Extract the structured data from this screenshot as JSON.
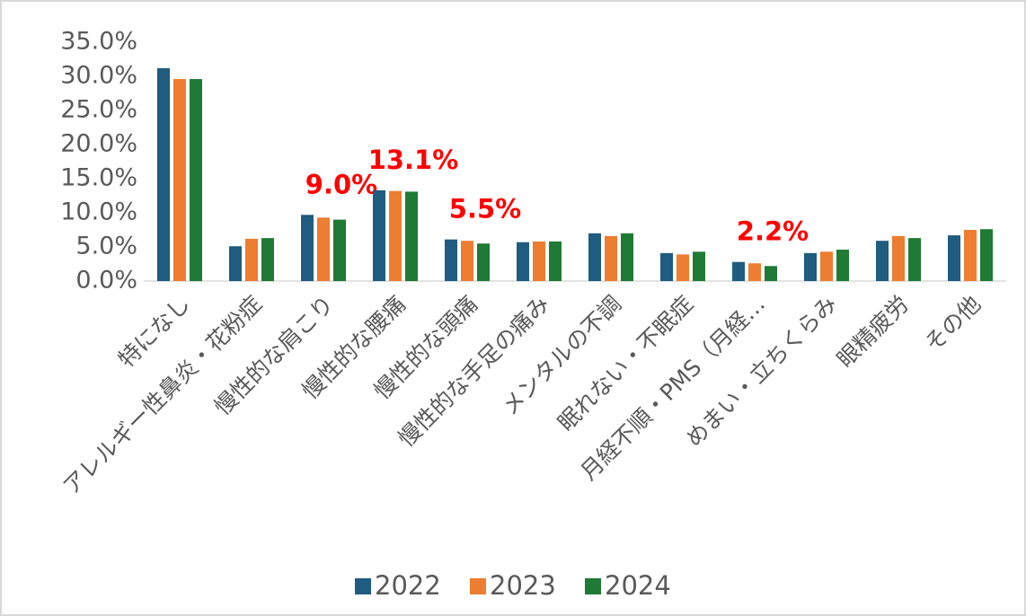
{
  "chart_data": {
    "type": "bar",
    "categories": [
      "特になし",
      "アレルギー性鼻炎・花粉症",
      "慢性的な肩こり",
      "慢性的な腰痛",
      "慢性的な頭痛",
      "慢性的な手足の痛み",
      "メンタルの不調",
      "眠れない・不眠症",
      "月経不順・PMS（月経…",
      "めまい・立ちくらみ",
      "眼精疲労",
      "その他"
    ],
    "series": [
      {
        "name": "2022",
        "color": "#1f5c7f",
        "values": [
          31.2,
          5.1,
          9.7,
          13.3,
          6.1,
          5.7,
          7.0,
          4.1,
          2.8,
          4.1,
          5.9,
          6.7
        ]
      },
      {
        "name": "2023",
        "color": "#ed7d31",
        "values": [
          29.6,
          6.2,
          9.3,
          13.2,
          5.9,
          5.8,
          6.6,
          3.9,
          2.6,
          4.3,
          6.6,
          7.5
        ]
      },
      {
        "name": "2024",
        "color": "#1e7a34",
        "values": [
          29.6,
          6.3,
          9.0,
          13.1,
          5.5,
          5.8,
          7.0,
          4.3,
          2.2,
          4.6,
          6.3,
          7.6
        ],
        "value_labels": [
          null,
          null,
          "9.0%",
          "13.1%",
          "5.5%",
          null,
          null,
          null,
          "2.2%",
          null,
          null,
          null
        ]
      }
    ],
    "ylim": [
      0,
      35
    ],
    "yticks": [
      {
        "value": 0,
        "label": "0.0%"
      },
      {
        "value": 5,
        "label": "5.0%"
      },
      {
        "value": 10,
        "label": "10.0%"
      },
      {
        "value": 15,
        "label": "15.0%"
      },
      {
        "value": 20,
        "label": "20.0%"
      },
      {
        "value": 25,
        "label": "25.0%"
      },
      {
        "value": 30,
        "label": "30.0%"
      },
      {
        "value": 35,
        "label": "35.0%"
      }
    ],
    "legend": "bottom"
  }
}
